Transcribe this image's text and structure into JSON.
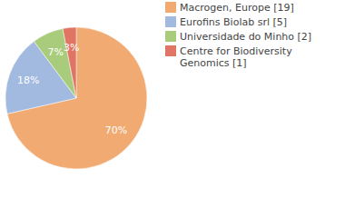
{
  "chart_data": {
    "type": "pie",
    "categories": [
      "Macrogen, Europe [19]",
      "Eurofins Biolab srl [5]",
      "Universidade do Minho [2]",
      "Centre for Biodiversity Genomics [1]"
    ],
    "values": [
      70,
      18,
      7,
      3
    ],
    "value_labels": [
      "70%",
      "18%",
      "7%",
      "3%"
    ],
    "colors": [
      "#f0aa72",
      "#a2b9e0",
      "#a9cc7c",
      "#e07563"
    ],
    "data_labels": true,
    "legend": "upper right"
  }
}
